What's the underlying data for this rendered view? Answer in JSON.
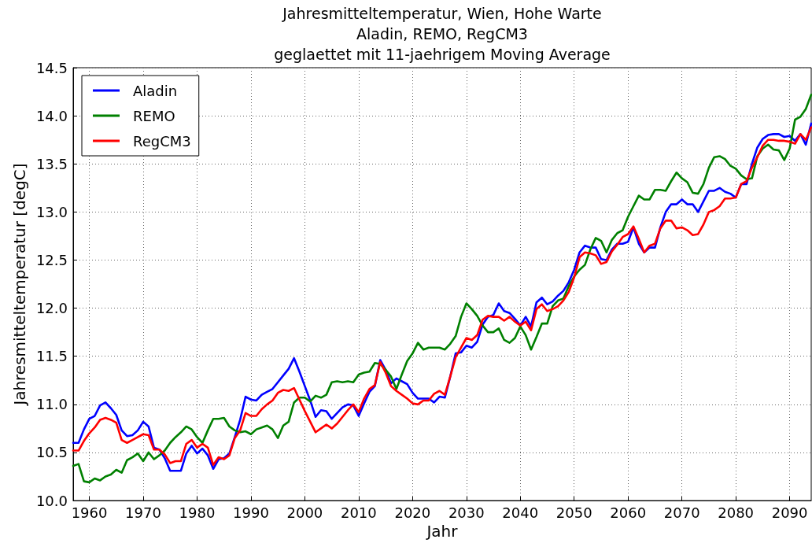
{
  "chart_data": {
    "type": "line",
    "title": "Jahresmitteltemperatur, Wien, Hohe Warte",
    "subtitle": "Aladin, REMO, RegCM3\ngeglaettet mit 11-jaehrigem Moving Average",
    "xlabel": "Jahr",
    "ylabel": "Jahresmitteltemperatur [degC]",
    "x": [
      1957,
      1958,
      1959,
      1960,
      1961,
      1962,
      1963,
      1964,
      1965,
      1966,
      1967,
      1968,
      1969,
      1970,
      1971,
      1972,
      1973,
      1974,
      1975,
      1976,
      1977,
      1978,
      1979,
      1980,
      1981,
      1982,
      1983,
      1984,
      1985,
      1986,
      1987,
      1988,
      1989,
      1990,
      1991,
      1992,
      1993,
      1994,
      1995,
      1996,
      1997,
      1998,
      1999,
      2000,
      2001,
      2002,
      2003,
      2004,
      2005,
      2006,
      2007,
      2008,
      2009,
      2010,
      2011,
      2012,
      2013,
      2014,
      2015,
      2016,
      2017,
      2018,
      2019,
      2020,
      2021,
      2022,
      2023,
      2024,
      2025,
      2026,
      2027,
      2028,
      2029,
      2030,
      2031,
      2032,
      2033,
      2034,
      2035,
      2036,
      2037,
      2038,
      2039,
      2040,
      2041,
      2042,
      2043,
      2044,
      2045,
      2046,
      2047,
      2048,
      2049,
      2050,
      2051,
      2052,
      2053,
      2054,
      2055,
      2056,
      2057,
      2058,
      2059,
      2060,
      2061,
      2062,
      2063,
      2064,
      2065,
      2066,
      2067,
      2068,
      2069,
      2070,
      2071,
      2072,
      2073,
      2074,
      2075,
      2076,
      2077,
      2078,
      2079,
      2080,
      2081,
      2082,
      2083,
      2084,
      2085,
      2086,
      2087,
      2088,
      2089,
      2090,
      2091,
      2092,
      2093,
      2094
    ],
    "series": [
      {
        "name": "Aladin",
        "color": "#0000ff",
        "values": [
          10.6,
          10.6,
          10.74,
          10.85,
          10.88,
          10.99,
          11.02,
          10.96,
          10.89,
          10.73,
          10.67,
          10.68,
          10.73,
          10.82,
          10.77,
          10.55,
          10.53,
          10.44,
          10.31,
          10.31,
          10.31,
          10.49,
          10.57,
          10.49,
          10.54,
          10.47,
          10.33,
          10.43,
          10.44,
          10.49,
          10.66,
          10.84,
          11.08,
          11.05,
          11.04,
          11.1,
          11.13,
          11.16,
          11.23,
          11.3,
          11.37,
          11.48,
          11.34,
          11.19,
          11.04,
          10.87,
          10.94,
          10.93,
          10.85,
          10.91,
          10.97,
          11.0,
          10.99,
          10.88,
          11.01,
          11.13,
          11.19,
          11.46,
          11.36,
          11.22,
          11.27,
          11.24,
          11.21,
          11.12,
          11.06,
          11.06,
          11.06,
          11.02,
          11.08,
          11.07,
          11.29,
          11.53,
          11.54,
          11.61,
          11.59,
          11.65,
          11.83,
          11.91,
          11.93,
          12.05,
          11.97,
          11.95,
          11.89,
          11.82,
          11.91,
          11.81,
          12.06,
          12.11,
          12.04,
          12.07,
          12.13,
          12.18,
          12.27,
          12.4,
          12.58,
          12.65,
          12.63,
          12.63,
          12.51,
          12.5,
          12.61,
          12.67,
          12.67,
          12.69,
          12.84,
          12.67,
          12.58,
          12.63,
          12.63,
          12.84,
          13.0,
          13.08,
          13.08,
          13.13,
          13.08,
          13.08,
          13.0,
          13.11,
          13.22,
          13.22,
          13.25,
          13.21,
          13.19,
          13.15,
          13.29,
          13.29,
          13.5,
          13.67,
          13.76,
          13.8,
          13.81,
          13.81,
          13.78,
          13.79,
          13.74,
          13.81,
          13.7,
          13.92
        ]
      },
      {
        "name": "REMO",
        "color": "#008000",
        "values": [
          10.36,
          10.38,
          10.2,
          10.19,
          10.23,
          10.21,
          10.25,
          10.27,
          10.32,
          10.29,
          10.42,
          10.45,
          10.49,
          10.41,
          10.5,
          10.43,
          10.47,
          10.52,
          10.6,
          10.66,
          10.71,
          10.77,
          10.74,
          10.66,
          10.6,
          10.73,
          10.85,
          10.85,
          10.86,
          10.77,
          10.73,
          10.71,
          10.72,
          10.69,
          10.74,
          10.76,
          10.78,
          10.74,
          10.65,
          10.78,
          10.82,
          11.02,
          11.07,
          11.07,
          11.03,
          11.09,
          11.07,
          11.1,
          11.23,
          11.24,
          11.23,
          11.24,
          11.23,
          11.31,
          11.33,
          11.34,
          11.43,
          11.42,
          11.36,
          11.29,
          11.16,
          11.31,
          11.45,
          11.53,
          11.64,
          11.57,
          11.59,
          11.59,
          11.59,
          11.57,
          11.63,
          11.71,
          11.91,
          12.05,
          11.99,
          11.92,
          11.82,
          11.75,
          11.75,
          11.79,
          11.67,
          11.64,
          11.69,
          11.81,
          11.72,
          11.57,
          11.7,
          11.84,
          11.84,
          12.02,
          12.08,
          12.1,
          12.23,
          12.33,
          12.4,
          12.45,
          12.61,
          12.73,
          12.7,
          12.58,
          12.71,
          12.78,
          12.81,
          12.95,
          13.06,
          13.17,
          13.13,
          13.13,
          13.23,
          13.23,
          13.22,
          13.32,
          13.41,
          13.35,
          13.31,
          13.2,
          13.19,
          13.29,
          13.46,
          13.57,
          13.58,
          13.55,
          13.48,
          13.45,
          13.38,
          13.34,
          13.35,
          13.58,
          13.66,
          13.7,
          13.65,
          13.64,
          13.54,
          13.66,
          13.96,
          13.99,
          14.07,
          14.22
        ]
      },
      {
        "name": "RegCM3",
        "color": "#ff0000",
        "values": [
          10.52,
          10.52,
          10.62,
          10.7,
          10.76,
          10.84,
          10.86,
          10.84,
          10.81,
          10.63,
          10.6,
          10.63,
          10.66,
          10.69,
          10.68,
          10.53,
          10.53,
          10.48,
          10.39,
          10.41,
          10.41,
          10.59,
          10.63,
          10.55,
          10.59,
          10.55,
          10.37,
          10.45,
          10.43,
          10.47,
          10.65,
          10.73,
          10.91,
          10.88,
          10.88,
          10.95,
          11.0,
          11.04,
          11.12,
          11.15,
          11.14,
          11.17,
          11.05,
          10.93,
          10.82,
          10.71,
          10.75,
          10.79,
          10.75,
          10.8,
          10.87,
          10.94,
          11.0,
          10.92,
          11.06,
          11.16,
          11.2,
          11.44,
          11.33,
          11.19,
          11.14,
          11.1,
          11.06,
          11.01,
          11.0,
          11.04,
          11.04,
          11.11,
          11.14,
          11.1,
          11.29,
          11.49,
          11.59,
          11.69,
          11.67,
          11.72,
          11.88,
          11.92,
          11.91,
          11.91,
          11.87,
          11.91,
          11.86,
          11.82,
          11.86,
          11.77,
          11.99,
          12.04,
          11.97,
          11.99,
          12.02,
          12.08,
          12.17,
          12.32,
          12.53,
          12.58,
          12.57,
          12.55,
          12.46,
          12.48,
          12.59,
          12.66,
          12.74,
          12.77,
          12.85,
          12.72,
          12.58,
          12.65,
          12.67,
          12.83,
          12.91,
          12.91,
          12.83,
          12.84,
          12.81,
          12.76,
          12.77,
          12.87,
          13.0,
          13.02,
          13.06,
          13.14,
          13.14,
          13.15,
          13.29,
          13.32,
          13.46,
          13.57,
          13.69,
          13.75,
          13.75,
          13.74,
          13.74,
          13.73,
          13.71,
          13.81,
          13.75,
          13.88
        ]
      }
    ],
    "xlim": [
      1957,
      2094
    ],
    "xticks": [
      1960,
      1970,
      1980,
      1990,
      2000,
      2010,
      2020,
      2030,
      2040,
      2050,
      2060,
      2070,
      2080,
      2090
    ],
    "ylim": [
      10,
      14.5
    ],
    "yticks": [
      {
        "value": 10,
        "label": "10.0"
      },
      10.5,
      {
        "value": 11,
        "label": "11.0"
      },
      11.5,
      {
        "value": 12,
        "label": "12.0"
      },
      12.5,
      {
        "value": 13,
        "label": "13.0"
      },
      13.5,
      {
        "value": 14,
        "label": "14.0"
      },
      14.5
    ],
    "grid": true,
    "legend": "top left",
    "marker": "none",
    "line_style": "solid"
  }
}
